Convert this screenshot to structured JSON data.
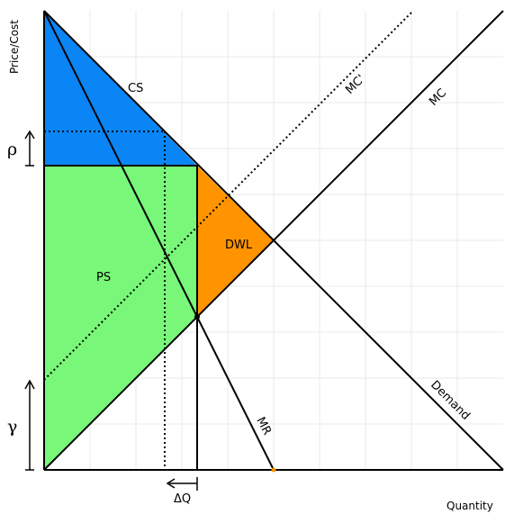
{
  "axes": {
    "y_label": "Price/Cost",
    "x_label": "Quantity"
  },
  "regions": {
    "cs": "CS",
    "ps": "PS",
    "dwl": "DWL"
  },
  "curves": {
    "mc_prime": "MC'",
    "mc": "MC",
    "demand": "Demand",
    "mr": "MR"
  },
  "markers": {
    "rho": "ρ",
    "gamma": "γ",
    "delta_q": "ΔQ"
  },
  "colors": {
    "cs_fill": "#0a85f5",
    "ps_fill": "#78f778",
    "dwl_fill": "#ff9400",
    "grid": "#e8e8e8",
    "line": "#000000",
    "mr_dot": "#ff9400"
  }
}
